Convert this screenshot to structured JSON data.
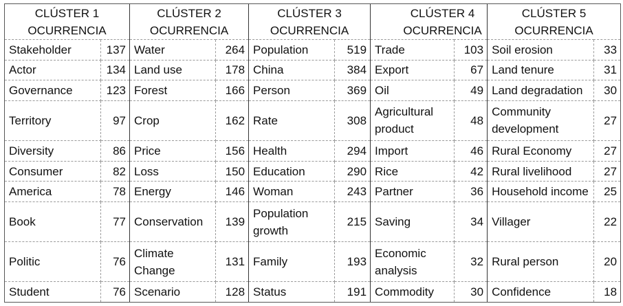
{
  "clusters": [
    {
      "title": "CLÚSTER 1",
      "subtitle": "OCURRENCIA"
    },
    {
      "title": "CLÚSTER 2",
      "subtitle": "OCURRENCIA"
    },
    {
      "title": "CLÚSTER 3",
      "subtitle": "OCURRENCIA"
    },
    {
      "title": "CLÚSTER 4",
      "subtitle": "OCURRENCIA"
    },
    {
      "title": "CLÚSTER 5",
      "subtitle": "OCURRENCIA"
    }
  ],
  "rows": [
    [
      [
        "Stakeholder",
        "137"
      ],
      [
        "Water",
        "264"
      ],
      [
        "Population",
        "519"
      ],
      [
        "Trade",
        "103"
      ],
      [
        "Soil erosion",
        "33"
      ]
    ],
    [
      [
        "Actor",
        "134"
      ],
      [
        "Land use",
        "178"
      ],
      [
        "China",
        "384"
      ],
      [
        "Export",
        "67"
      ],
      [
        "Land tenure",
        "31"
      ]
    ],
    [
      [
        "Governance",
        "123"
      ],
      [
        "Forest",
        "166"
      ],
      [
        "Person",
        "369"
      ],
      [
        "Oil",
        "49"
      ],
      [
        "Land degradation",
        "30"
      ]
    ],
    [
      [
        "Territory",
        "97"
      ],
      [
        "Crop",
        "162"
      ],
      [
        "Rate",
        "308"
      ],
      [
        "Agricultural product",
        "48"
      ],
      [
        "Community development",
        "27"
      ]
    ],
    [
      [
        "Diversity",
        "86"
      ],
      [
        "Price",
        "156"
      ],
      [
        "Health",
        "294"
      ],
      [
        "Import",
        "46"
      ],
      [
        "Rural Economy",
        "27"
      ]
    ],
    [
      [
        "Consumer",
        "82"
      ],
      [
        "Loss",
        "150"
      ],
      [
        "Education",
        "290"
      ],
      [
        "Rice",
        "42"
      ],
      [
        "Rural livelihood",
        "27"
      ]
    ],
    [
      [
        "America",
        "78"
      ],
      [
        "Energy",
        "146"
      ],
      [
        "Woman",
        "243"
      ],
      [
        "Partner",
        "36"
      ],
      [
        "Household income",
        "25"
      ]
    ],
    [
      [
        "Book",
        "77"
      ],
      [
        "Conservation",
        "139"
      ],
      [
        "Population growth",
        "215"
      ],
      [
        "Saving",
        "34"
      ],
      [
        "Villager",
        "22"
      ]
    ],
    [
      [
        "Politic",
        "76"
      ],
      [
        "Climate Change",
        "131"
      ],
      [
        "Family",
        "193"
      ],
      [
        "Economic analysis",
        "32"
      ],
      [
        "Rural person",
        "20"
      ]
    ],
    [
      [
        "Student",
        "76"
      ],
      [
        "Scenario",
        "128"
      ],
      [
        "Status",
        "191"
      ],
      [
        "Commodity",
        "30"
      ],
      [
        "Confidence",
        "18"
      ]
    ]
  ]
}
